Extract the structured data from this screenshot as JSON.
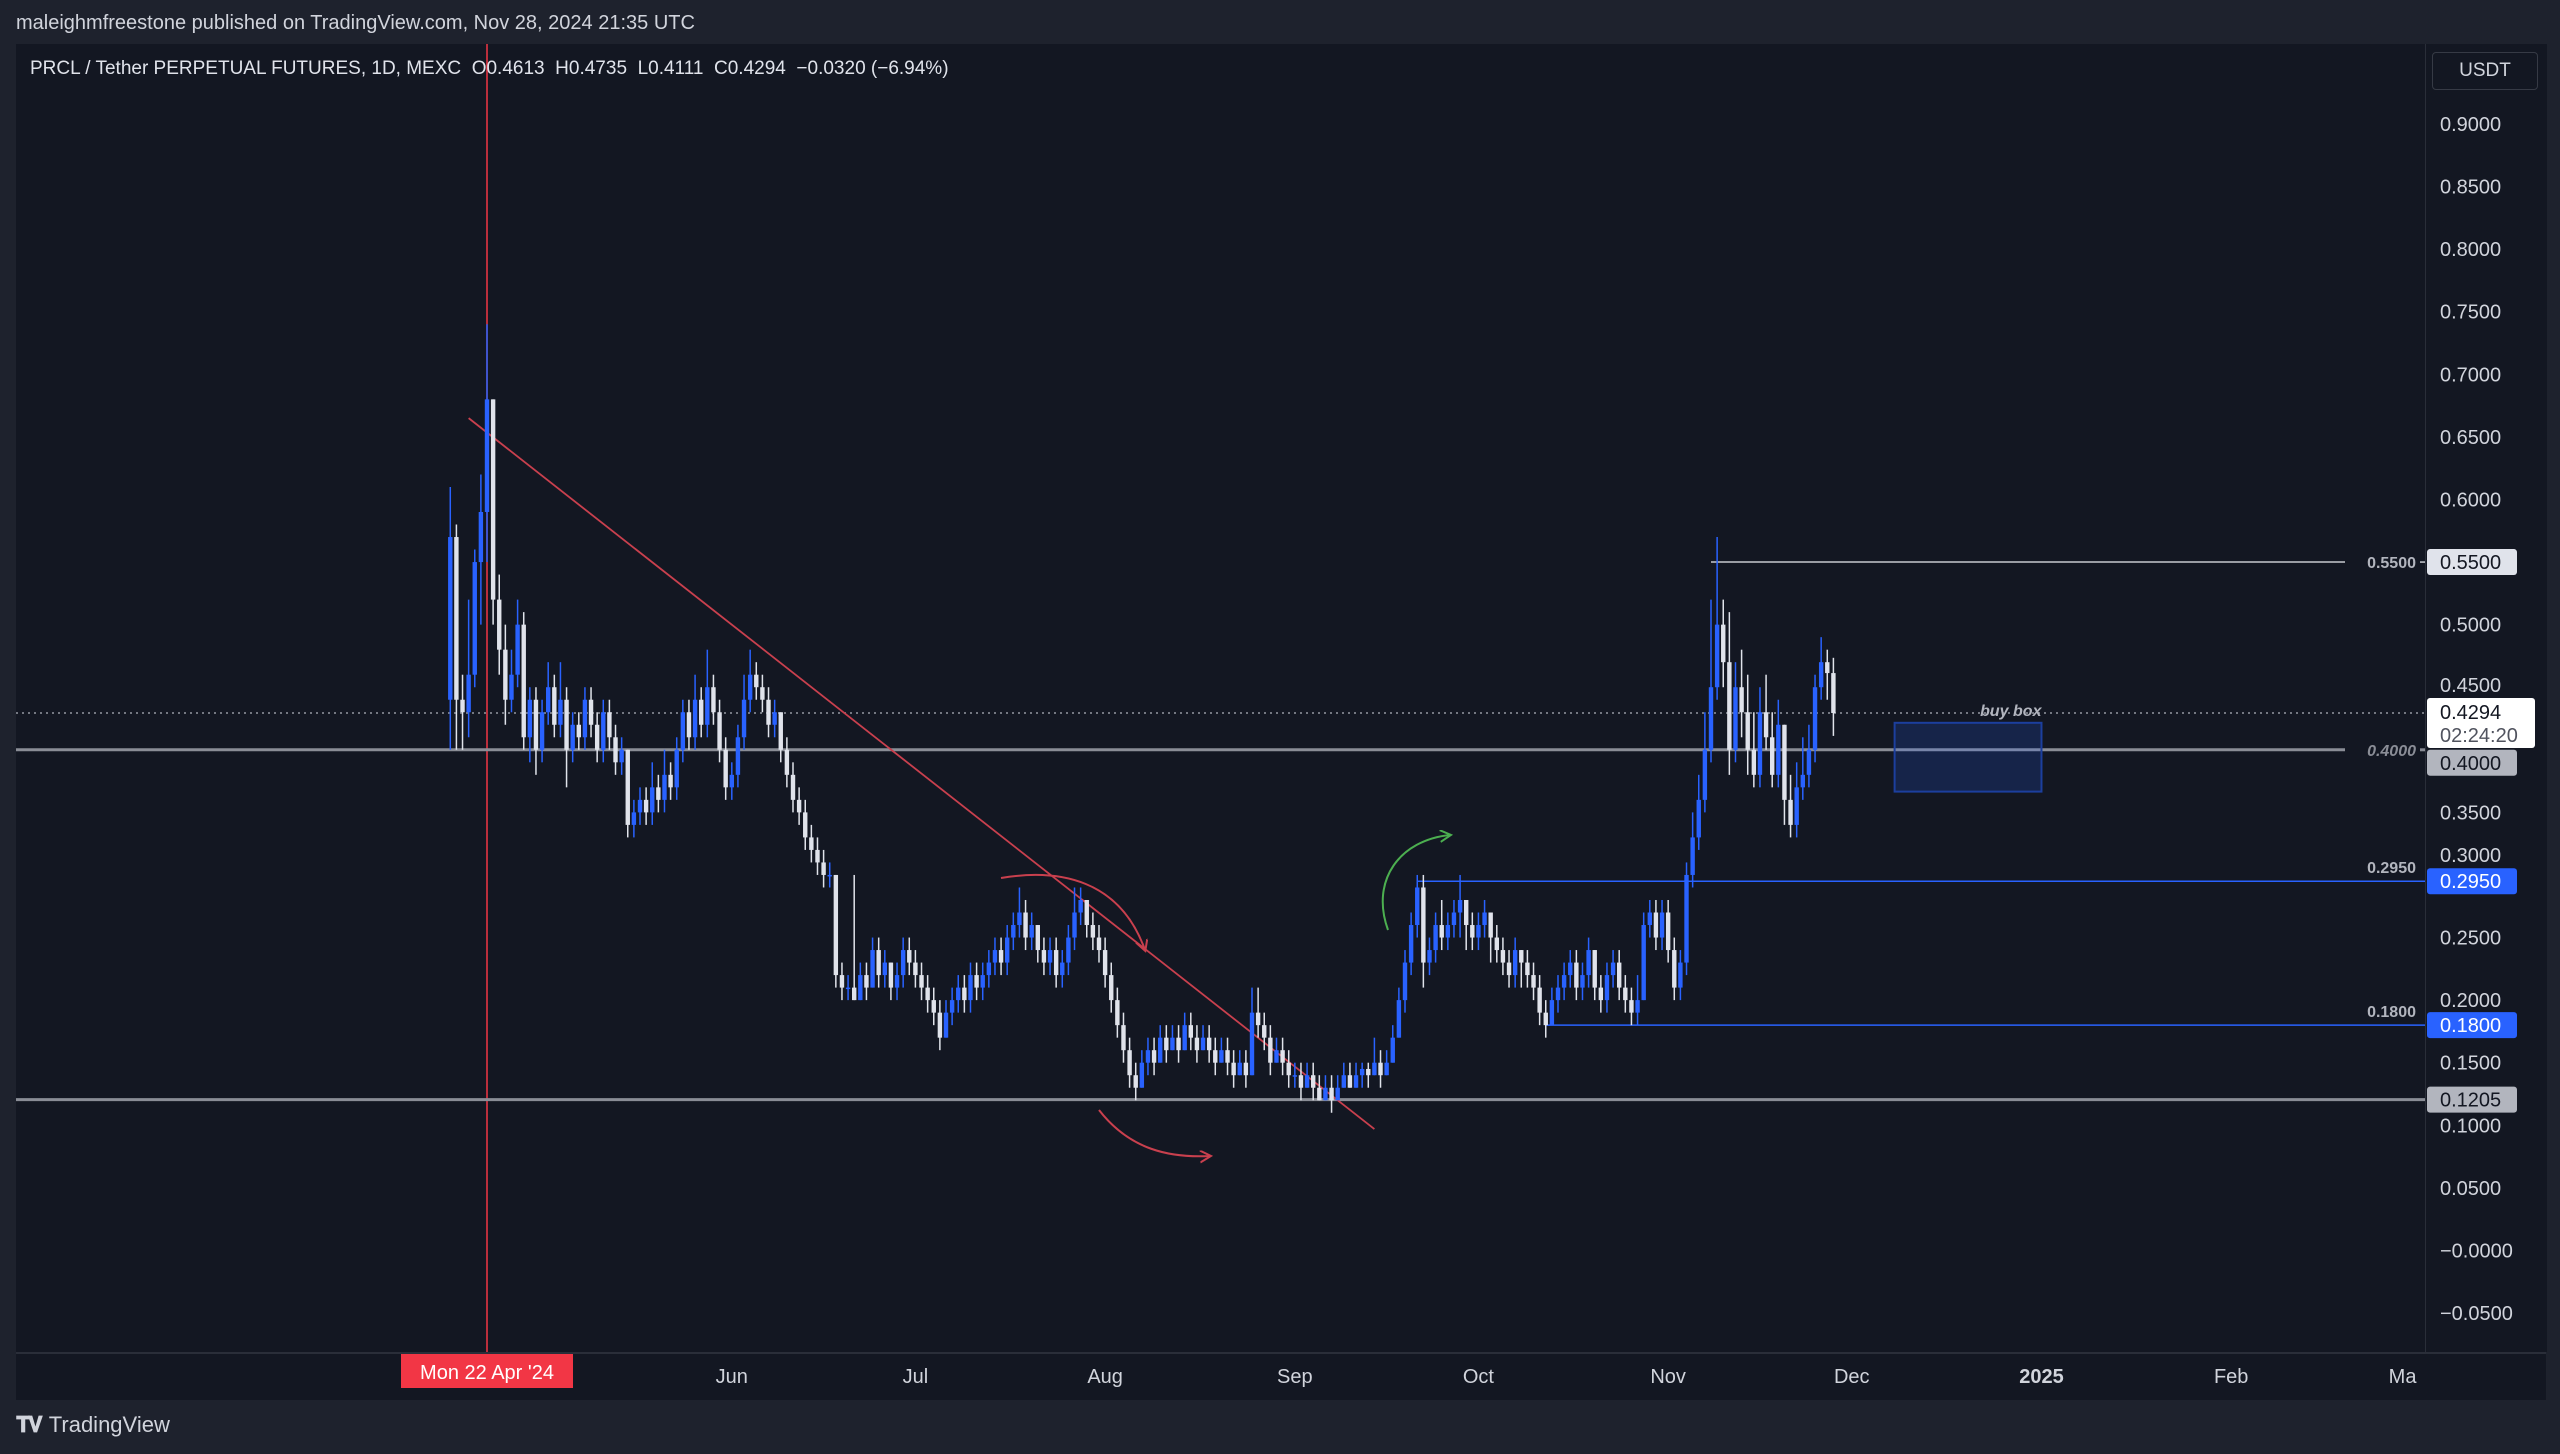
{
  "header": {
    "published": "maleighmfreestone published on TradingView.com, Nov 28, 2024 21:35 UTC"
  },
  "legend": {
    "symbol": "PRCL / Tether PERPETUAL FUTURES, 1D, MEXC",
    "open": "O0.4613",
    "high": "H0.4735",
    "low": "L0.4111",
    "close": "C0.4294",
    "change": "−0.0320 (−6.94%)"
  },
  "currency_button": "USDT",
  "footer": {
    "brand": "TradingView",
    "logo": "17"
  },
  "colors": {
    "up": "#2962ff",
    "down": "#e0e3eb",
    "background": "#131722",
    "crosshair": "#f23645",
    "trendline": "#c9404e",
    "level_blue": "#2962ff",
    "arrow_green": "#4caf50"
  },
  "chart_data": {
    "type": "candlestick",
    "interval": "1D",
    "start_date": "2024-04-16",
    "ylim": [
      -0.07,
      0.94
    ],
    "y_ticks": [
      "0.9000",
      "0.8500",
      "0.8000",
      "0.7500",
      "0.7000",
      "0.6500",
      "0.6000",
      "0.5500",
      "0.5000",
      "0.4500",
      "0.4000",
      "0.3500",
      "0.3000",
      "0.2500",
      "0.2000",
      "0.1500",
      "0.1000",
      "0.0500",
      "−0.0000",
      "−0.0500"
    ],
    "x_ticks": [
      {
        "label": "Jun",
        "date": "2024-06-01"
      },
      {
        "label": "Jul",
        "date": "2024-07-01"
      },
      {
        "label": "Aug",
        "date": "2024-08-01"
      },
      {
        "label": "Sep",
        "date": "2024-09-01"
      },
      {
        "label": "Oct",
        "date": "2024-10-01"
      },
      {
        "label": "Nov",
        "date": "2024-11-01"
      },
      {
        "label": "Dec",
        "date": "2024-12-01"
      },
      {
        "label": "2025",
        "date": "2025-01-01"
      },
      {
        "label": "Feb",
        "date": "2025-02-01"
      },
      {
        "label": "Ma",
        "date": "2025-03-01"
      }
    ],
    "crosshair": {
      "label": "Mon 22 Apr '24",
      "date": "2024-04-22"
    },
    "candles_ohlc": [
      [
        0.44,
        0.61,
        0.4,
        0.57
      ],
      [
        0.57,
        0.58,
        0.4,
        0.44
      ],
      [
        0.44,
        0.46,
        0.4,
        0.43
      ],
      [
        0.43,
        0.52,
        0.41,
        0.46
      ],
      [
        0.46,
        0.56,
        0.45,
        0.55
      ],
      [
        0.55,
        0.62,
        0.5,
        0.59
      ],
      [
        0.59,
        0.74,
        0.55,
        0.68
      ],
      [
        0.68,
        0.68,
        0.5,
        0.52
      ],
      [
        0.52,
        0.54,
        0.46,
        0.48
      ],
      [
        0.48,
        0.5,
        0.42,
        0.44
      ],
      [
        0.44,
        0.48,
        0.43,
        0.46
      ],
      [
        0.46,
        0.52,
        0.45,
        0.5
      ],
      [
        0.5,
        0.51,
        0.4,
        0.41
      ],
      [
        0.41,
        0.45,
        0.39,
        0.44
      ],
      [
        0.44,
        0.45,
        0.38,
        0.4
      ],
      [
        0.4,
        0.44,
        0.39,
        0.43
      ],
      [
        0.43,
        0.47,
        0.42,
        0.45
      ],
      [
        0.45,
        0.46,
        0.41,
        0.42
      ],
      [
        0.42,
        0.47,
        0.41,
        0.44
      ],
      [
        0.44,
        0.45,
        0.37,
        0.4
      ],
      [
        0.4,
        0.43,
        0.39,
        0.42
      ],
      [
        0.42,
        0.43,
        0.4,
        0.41
      ],
      [
        0.41,
        0.45,
        0.4,
        0.44
      ],
      [
        0.44,
        0.45,
        0.41,
        0.42
      ],
      [
        0.42,
        0.43,
        0.39,
        0.4
      ],
      [
        0.4,
        0.44,
        0.39,
        0.43
      ],
      [
        0.43,
        0.44,
        0.4,
        0.41
      ],
      [
        0.41,
        0.42,
        0.38,
        0.39
      ],
      [
        0.39,
        0.41,
        0.38,
        0.4
      ],
      [
        0.4,
        0.4,
        0.33,
        0.34
      ],
      [
        0.34,
        0.36,
        0.33,
        0.35
      ],
      [
        0.35,
        0.37,
        0.34,
        0.36
      ],
      [
        0.36,
        0.37,
        0.34,
        0.35
      ],
      [
        0.35,
        0.39,
        0.34,
        0.37
      ],
      [
        0.37,
        0.38,
        0.35,
        0.36
      ],
      [
        0.36,
        0.4,
        0.35,
        0.38
      ],
      [
        0.38,
        0.39,
        0.36,
        0.37
      ],
      [
        0.37,
        0.41,
        0.36,
        0.4
      ],
      [
        0.4,
        0.44,
        0.39,
        0.43
      ],
      [
        0.43,
        0.44,
        0.4,
        0.41
      ],
      [
        0.41,
        0.46,
        0.4,
        0.44
      ],
      [
        0.44,
        0.45,
        0.41,
        0.42
      ],
      [
        0.42,
        0.48,
        0.41,
        0.45
      ],
      [
        0.45,
        0.46,
        0.42,
        0.43
      ],
      [
        0.43,
        0.44,
        0.39,
        0.4
      ],
      [
        0.4,
        0.41,
        0.36,
        0.37
      ],
      [
        0.37,
        0.39,
        0.36,
        0.38
      ],
      [
        0.38,
        0.42,
        0.37,
        0.41
      ],
      [
        0.41,
        0.46,
        0.4,
        0.44
      ],
      [
        0.44,
        0.48,
        0.43,
        0.46
      ],
      [
        0.46,
        0.47,
        0.44,
        0.45
      ],
      [
        0.45,
        0.46,
        0.43,
        0.44
      ],
      [
        0.44,
        0.45,
        0.41,
        0.42
      ],
      [
        0.42,
        0.44,
        0.41,
        0.43
      ],
      [
        0.43,
        0.43,
        0.39,
        0.4
      ],
      [
        0.4,
        0.41,
        0.37,
        0.38
      ],
      [
        0.38,
        0.39,
        0.35,
        0.36
      ],
      [
        0.36,
        0.37,
        0.34,
        0.35
      ],
      [
        0.35,
        0.36,
        0.32,
        0.33
      ],
      [
        0.33,
        0.34,
        0.31,
        0.32
      ],
      [
        0.32,
        0.33,
        0.3,
        0.31
      ],
      [
        0.31,
        0.32,
        0.29,
        0.3
      ],
      [
        0.3,
        0.31,
        0.29,
        0.3
      ],
      [
        0.3,
        0.3,
        0.21,
        0.22
      ],
      [
        0.22,
        0.23,
        0.2,
        0.21
      ],
      [
        0.21,
        0.22,
        0.2,
        0.21
      ],
      [
        0.21,
        0.3,
        0.2,
        0.2
      ],
      [
        0.2,
        0.23,
        0.2,
        0.22
      ],
      [
        0.22,
        0.23,
        0.2,
        0.21
      ],
      [
        0.21,
        0.25,
        0.21,
        0.24
      ],
      [
        0.24,
        0.25,
        0.21,
        0.22
      ],
      [
        0.22,
        0.24,
        0.21,
        0.23
      ],
      [
        0.23,
        0.23,
        0.2,
        0.21
      ],
      [
        0.21,
        0.23,
        0.2,
        0.22
      ],
      [
        0.22,
        0.25,
        0.21,
        0.24
      ],
      [
        0.24,
        0.25,
        0.22,
        0.23
      ],
      [
        0.23,
        0.24,
        0.21,
        0.22
      ],
      [
        0.22,
        0.23,
        0.2,
        0.21
      ],
      [
        0.21,
        0.22,
        0.19,
        0.2
      ],
      [
        0.2,
        0.21,
        0.18,
        0.19
      ],
      [
        0.19,
        0.2,
        0.16,
        0.17
      ],
      [
        0.17,
        0.2,
        0.17,
        0.19
      ],
      [
        0.19,
        0.21,
        0.18,
        0.2
      ],
      [
        0.2,
        0.22,
        0.19,
        0.21
      ],
      [
        0.21,
        0.22,
        0.19,
        0.2
      ],
      [
        0.2,
        0.23,
        0.19,
        0.22
      ],
      [
        0.22,
        0.23,
        0.2,
        0.21
      ],
      [
        0.21,
        0.23,
        0.2,
        0.22
      ],
      [
        0.22,
        0.24,
        0.21,
        0.23
      ],
      [
        0.23,
        0.25,
        0.22,
        0.24
      ],
      [
        0.24,
        0.25,
        0.22,
        0.23
      ],
      [
        0.23,
        0.26,
        0.22,
        0.25
      ],
      [
        0.25,
        0.27,
        0.24,
        0.26
      ],
      [
        0.26,
        0.29,
        0.25,
        0.27
      ],
      [
        0.27,
        0.28,
        0.24,
        0.25
      ],
      [
        0.25,
        0.27,
        0.24,
        0.26
      ],
      [
        0.26,
        0.26,
        0.23,
        0.24
      ],
      [
        0.24,
        0.25,
        0.22,
        0.23
      ],
      [
        0.23,
        0.25,
        0.22,
        0.24
      ],
      [
        0.24,
        0.25,
        0.21,
        0.22
      ],
      [
        0.22,
        0.24,
        0.21,
        0.23
      ],
      [
        0.23,
        0.26,
        0.22,
        0.25
      ],
      [
        0.25,
        0.29,
        0.24,
        0.27
      ],
      [
        0.27,
        0.29,
        0.26,
        0.28
      ],
      [
        0.28,
        0.28,
        0.25,
        0.26
      ],
      [
        0.26,
        0.27,
        0.24,
        0.25
      ],
      [
        0.25,
        0.26,
        0.23,
        0.24
      ],
      [
        0.24,
        0.25,
        0.21,
        0.22
      ],
      [
        0.22,
        0.23,
        0.19,
        0.2
      ],
      [
        0.2,
        0.21,
        0.17,
        0.18
      ],
      [
        0.18,
        0.19,
        0.15,
        0.16
      ],
      [
        0.16,
        0.17,
        0.13,
        0.14
      ],
      [
        0.14,
        0.15,
        0.12,
        0.13
      ],
      [
        0.13,
        0.16,
        0.13,
        0.15
      ],
      [
        0.15,
        0.17,
        0.14,
        0.16
      ],
      [
        0.16,
        0.17,
        0.14,
        0.15
      ],
      [
        0.15,
        0.18,
        0.15,
        0.17
      ],
      [
        0.17,
        0.18,
        0.15,
        0.16
      ],
      [
        0.16,
        0.18,
        0.16,
        0.17
      ],
      [
        0.17,
        0.18,
        0.15,
        0.16
      ],
      [
        0.16,
        0.19,
        0.16,
        0.18
      ],
      [
        0.18,
        0.19,
        0.16,
        0.17
      ],
      [
        0.17,
        0.18,
        0.15,
        0.16
      ],
      [
        0.16,
        0.18,
        0.16,
        0.17
      ],
      [
        0.17,
        0.18,
        0.15,
        0.16
      ],
      [
        0.16,
        0.17,
        0.14,
        0.15
      ],
      [
        0.15,
        0.17,
        0.15,
        0.16
      ],
      [
        0.16,
        0.17,
        0.14,
        0.15
      ],
      [
        0.15,
        0.16,
        0.13,
        0.14
      ],
      [
        0.14,
        0.16,
        0.14,
        0.15
      ],
      [
        0.15,
        0.16,
        0.13,
        0.14
      ],
      [
        0.14,
        0.21,
        0.14,
        0.19
      ],
      [
        0.19,
        0.21,
        0.17,
        0.18
      ],
      [
        0.18,
        0.19,
        0.16,
        0.17
      ],
      [
        0.17,
        0.18,
        0.14,
        0.15
      ],
      [
        0.15,
        0.17,
        0.15,
        0.16
      ],
      [
        0.16,
        0.17,
        0.14,
        0.15
      ],
      [
        0.15,
        0.16,
        0.13,
        0.14
      ],
      [
        0.14,
        0.15,
        0.13,
        0.14
      ],
      [
        0.14,
        0.15,
        0.12,
        0.13
      ],
      [
        0.13,
        0.15,
        0.13,
        0.14
      ],
      [
        0.14,
        0.15,
        0.12,
        0.13
      ],
      [
        0.13,
        0.14,
        0.12,
        0.12
      ],
      [
        0.12,
        0.14,
        0.12,
        0.13
      ],
      [
        0.13,
        0.14,
        0.11,
        0.12
      ],
      [
        0.12,
        0.14,
        0.12,
        0.13
      ],
      [
        0.13,
        0.15,
        0.13,
        0.14
      ],
      [
        0.14,
        0.15,
        0.13,
        0.13
      ],
      [
        0.13,
        0.15,
        0.13,
        0.14
      ],
      [
        0.14,
        0.15,
        0.13,
        0.145
      ],
      [
        0.145,
        0.15,
        0.13,
        0.14
      ],
      [
        0.14,
        0.17,
        0.14,
        0.15
      ],
      [
        0.15,
        0.16,
        0.13,
        0.14
      ],
      [
        0.14,
        0.16,
        0.14,
        0.15
      ],
      [
        0.15,
        0.18,
        0.15,
        0.17
      ],
      [
        0.17,
        0.21,
        0.17,
        0.2
      ],
      [
        0.2,
        0.24,
        0.19,
        0.23
      ],
      [
        0.23,
        0.27,
        0.22,
        0.26
      ],
      [
        0.26,
        0.3,
        0.25,
        0.29
      ],
      [
        0.29,
        0.3,
        0.21,
        0.23
      ],
      [
        0.23,
        0.25,
        0.22,
        0.24
      ],
      [
        0.24,
        0.27,
        0.23,
        0.26
      ],
      [
        0.26,
        0.28,
        0.24,
        0.25
      ],
      [
        0.25,
        0.27,
        0.24,
        0.26
      ],
      [
        0.26,
        0.28,
        0.25,
        0.27
      ],
      [
        0.27,
        0.3,
        0.25,
        0.28
      ],
      [
        0.28,
        0.28,
        0.24,
        0.26
      ],
      [
        0.26,
        0.27,
        0.24,
        0.25
      ],
      [
        0.25,
        0.27,
        0.24,
        0.26
      ],
      [
        0.26,
        0.28,
        0.25,
        0.27
      ],
      [
        0.27,
        0.27,
        0.23,
        0.25
      ],
      [
        0.25,
        0.26,
        0.23,
        0.24
      ],
      [
        0.24,
        0.25,
        0.22,
        0.23
      ],
      [
        0.23,
        0.24,
        0.21,
        0.22
      ],
      [
        0.22,
        0.25,
        0.21,
        0.24
      ],
      [
        0.24,
        0.24,
        0.21,
        0.23
      ],
      [
        0.23,
        0.24,
        0.21,
        0.22
      ],
      [
        0.22,
        0.23,
        0.2,
        0.21
      ],
      [
        0.21,
        0.22,
        0.18,
        0.19
      ],
      [
        0.19,
        0.2,
        0.17,
        0.18
      ],
      [
        0.18,
        0.21,
        0.18,
        0.2
      ],
      [
        0.2,
        0.22,
        0.19,
        0.21
      ],
      [
        0.21,
        0.23,
        0.2,
        0.22
      ],
      [
        0.22,
        0.24,
        0.21,
        0.23
      ],
      [
        0.23,
        0.24,
        0.2,
        0.21
      ],
      [
        0.21,
        0.23,
        0.2,
        0.22
      ],
      [
        0.22,
        0.25,
        0.21,
        0.24
      ],
      [
        0.24,
        0.24,
        0.2,
        0.21
      ],
      [
        0.21,
        0.22,
        0.19,
        0.2
      ],
      [
        0.2,
        0.23,
        0.19,
        0.22
      ],
      [
        0.22,
        0.24,
        0.21,
        0.23
      ],
      [
        0.23,
        0.24,
        0.2,
        0.21
      ],
      [
        0.21,
        0.22,
        0.19,
        0.2
      ],
      [
        0.2,
        0.21,
        0.18,
        0.19
      ],
      [
        0.19,
        0.22,
        0.18,
        0.2
      ],
      [
        0.2,
        0.27,
        0.2,
        0.26
      ],
      [
        0.26,
        0.28,
        0.25,
        0.27
      ],
      [
        0.27,
        0.28,
        0.24,
        0.25
      ],
      [
        0.25,
        0.28,
        0.24,
        0.27
      ],
      [
        0.27,
        0.28,
        0.23,
        0.24
      ],
      [
        0.24,
        0.25,
        0.2,
        0.21
      ],
      [
        0.21,
        0.24,
        0.2,
        0.23
      ],
      [
        0.23,
        0.31,
        0.22,
        0.3
      ],
      [
        0.3,
        0.35,
        0.29,
        0.33
      ],
      [
        0.33,
        0.38,
        0.32,
        0.36
      ],
      [
        0.36,
        0.43,
        0.35,
        0.4
      ],
      [
        0.4,
        0.52,
        0.39,
        0.45
      ],
      [
        0.45,
        0.57,
        0.44,
        0.5
      ],
      [
        0.5,
        0.52,
        0.45,
        0.47
      ],
      [
        0.47,
        0.51,
        0.38,
        0.4
      ],
      [
        0.4,
        0.47,
        0.39,
        0.45
      ],
      [
        0.45,
        0.48,
        0.41,
        0.43
      ],
      [
        0.43,
        0.46,
        0.38,
        0.4
      ],
      [
        0.4,
        0.43,
        0.37,
        0.38
      ],
      [
        0.38,
        0.45,
        0.37,
        0.43
      ],
      [
        0.43,
        0.46,
        0.4,
        0.41
      ],
      [
        0.41,
        0.43,
        0.37,
        0.38
      ],
      [
        0.38,
        0.44,
        0.37,
        0.42
      ],
      [
        0.42,
        0.42,
        0.34,
        0.36
      ],
      [
        0.36,
        0.38,
        0.33,
        0.34
      ],
      [
        0.34,
        0.39,
        0.33,
        0.37
      ],
      [
        0.37,
        0.41,
        0.36,
        0.38
      ],
      [
        0.38,
        0.42,
        0.37,
        0.4
      ],
      [
        0.4,
        0.46,
        0.39,
        0.45
      ],
      [
        0.45,
        0.49,
        0.44,
        0.47
      ],
      [
        0.47,
        0.48,
        0.44,
        0.4613
      ],
      [
        0.4613,
        0.4735,
        0.4111,
        0.4294
      ]
    ],
    "levels": [
      {
        "price": 0.55,
        "label": "0.5500",
        "axis_label": "0.5500",
        "from_date": "2024-11-08",
        "style": "white"
      },
      {
        "price": 0.4,
        "label": "0.4000",
        "axis_label": "0.4000",
        "from_date": null,
        "style": "grey"
      },
      {
        "price": 0.295,
        "label": "0.2950",
        "axis_label": "0.2950",
        "from_date": "2024-09-21",
        "style": "blue"
      },
      {
        "price": 0.18,
        "label": "0.1800",
        "axis_label": "0.1800",
        "from_date": "2024-10-12",
        "style": "blue"
      },
      {
        "price": 0.1205,
        "label": "",
        "axis_label": "0.1205",
        "from_date": null,
        "style": "grey"
      }
    ],
    "last_price": {
      "value": "0.4294",
      "price": 0.4294,
      "countdown": "02:24:20"
    },
    "buy_box": {
      "label": "buy box",
      "top": 0.4,
      "bottom": 0.3666,
      "from_date": "2024-12-08",
      "to_date": "2025-01-01"
    },
    "trendline": {
      "from": {
        "date": "2024-04-19",
        "price": 0.665
      },
      "to": {
        "date": "2024-09-14",
        "price": 0.097
      }
    }
  }
}
